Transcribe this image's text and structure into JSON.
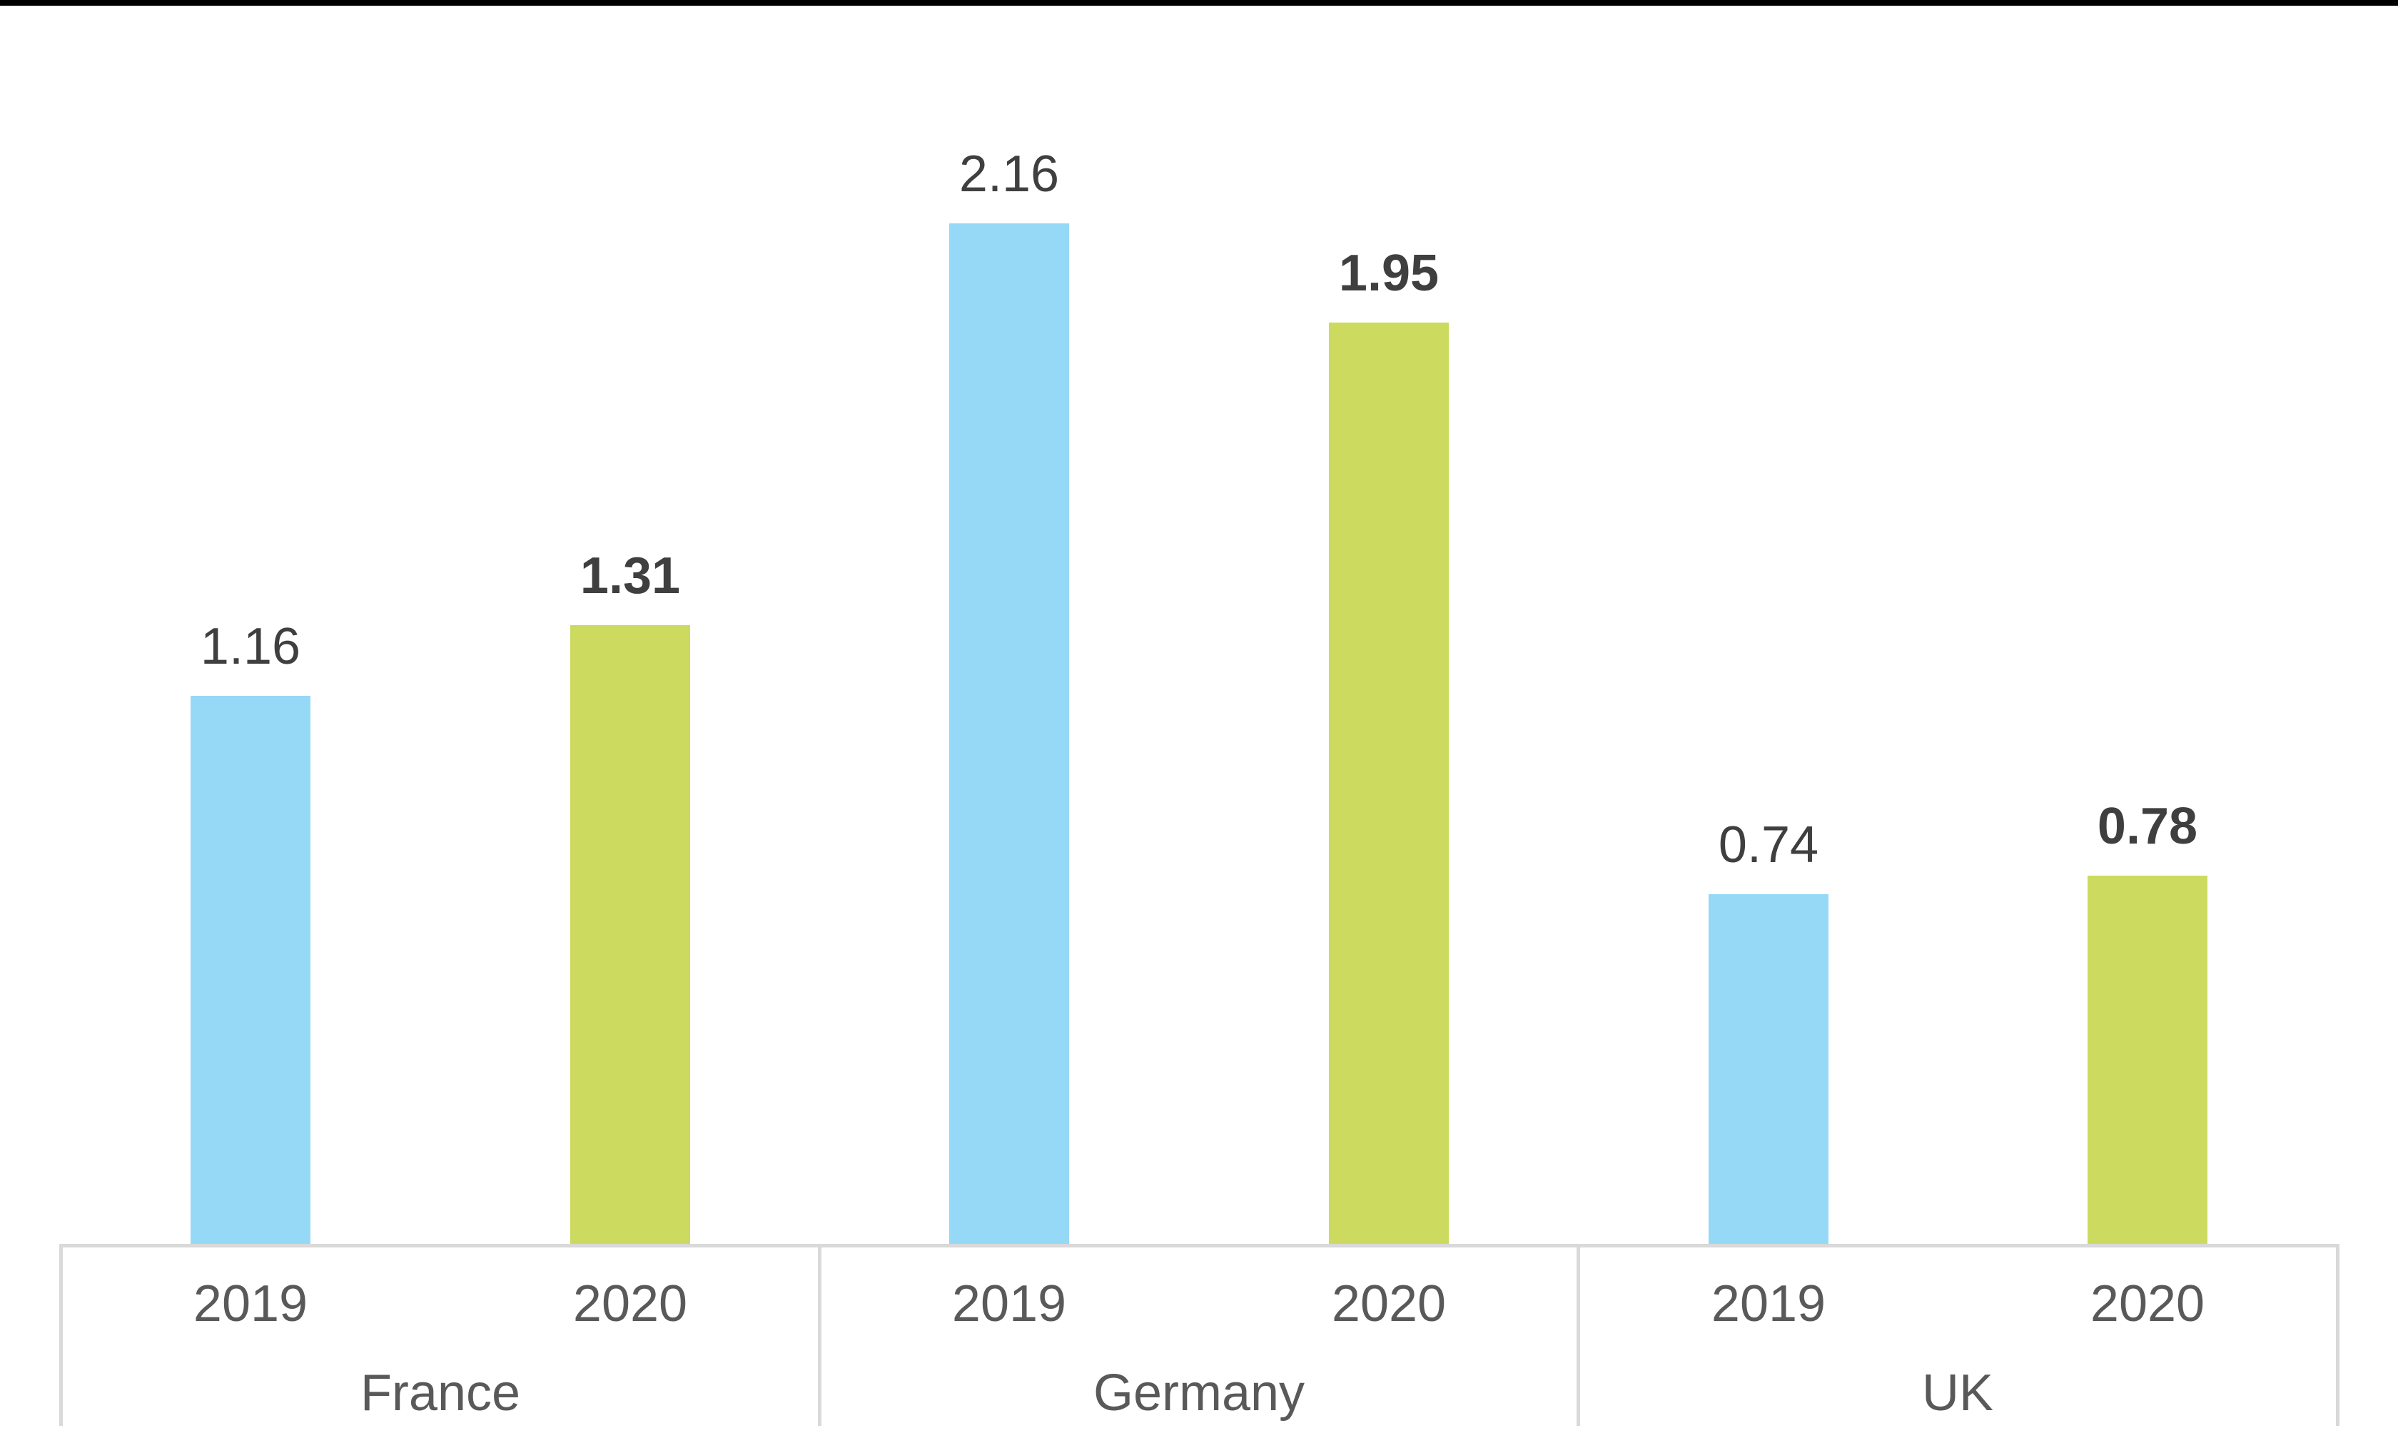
{
  "page": {
    "background": "#FFFFFF",
    "top_bar_color": "#000000"
  },
  "chart_data": {
    "type": "bar",
    "title": "",
    "categories": [
      "France",
      "Germany",
      "UK"
    ],
    "series": [
      {
        "name": "2019",
        "color": "#96D9F7",
        "values": [
          1.16,
          2.16,
          0.74
        ],
        "labels": [
          "1.16",
          "2.16",
          "0.74"
        ],
        "label_bold": false
      },
      {
        "name": "2020",
        "color": "#CCDB60",
        "values": [
          1.31,
          1.95,
          0.78
        ],
        "labels": [
          "1.31",
          "1.95",
          "0.78"
        ],
        "label_bold": true
      }
    ],
    "value_labels_shown": true,
    "y_axis_visible": false,
    "grid": "off",
    "legend": "none",
    "ylim": [
      0,
      2.6
    ],
    "x_axis_levels": [
      "year",
      "country"
    ],
    "colors": {
      "axis_line": "#D9D9D9",
      "tick_label": "#595959",
      "value_label": "#3F3F3F"
    }
  }
}
